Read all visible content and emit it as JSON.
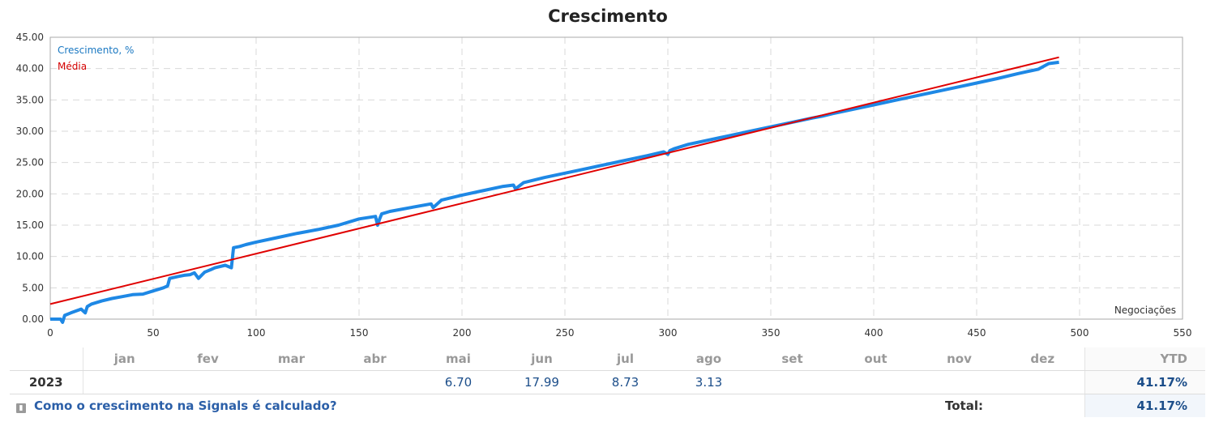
{
  "chart_data": {
    "type": "line",
    "title": "Crescimento",
    "xlabel": "Negociações",
    "ylabel": "",
    "xlim": [
      0,
      550
    ],
    "ylim": [
      0,
      45
    ],
    "x_ticks": [
      "0",
      "50",
      "100",
      "150",
      "200",
      "250",
      "300",
      "350",
      "400",
      "450",
      "500",
      "550"
    ],
    "y_ticks": [
      "0.00",
      "5.00",
      "10.00",
      "15.00",
      "20.00",
      "25.00",
      "30.00",
      "35.00",
      "40.00",
      "45.00"
    ],
    "grid": true,
    "legend_position": "top-left",
    "series": [
      {
        "name": "Crescimento, %",
        "color": "#1e88e5",
        "x": [
          0,
          2,
          5,
          6,
          7,
          10,
          15,
          17,
          18,
          20,
          25,
          30,
          35,
          40,
          45,
          50,
          55,
          57,
          58,
          62,
          65,
          68,
          70,
          72,
          75,
          78,
          80,
          85,
          88,
          89,
          92,
          95,
          100,
          110,
          120,
          130,
          140,
          150,
          158,
          159,
          160,
          161,
          165,
          175,
          185,
          186,
          190,
          200,
          210,
          220,
          225,
          226,
          230,
          240,
          250,
          260,
          270,
          280,
          290,
          298,
          300,
          301,
          303,
          310,
          320,
          330,
          340,
          350,
          360,
          370,
          375,
          380,
          390,
          400,
          410,
          420,
          430,
          440,
          450,
          460,
          470,
          480,
          485,
          490
        ],
        "y": [
          0.0,
          0.0,
          0.0,
          -0.5,
          0.6,
          1.0,
          1.6,
          1.0,
          2.0,
          2.4,
          2.9,
          3.3,
          3.6,
          3.9,
          4.0,
          4.5,
          5.0,
          5.3,
          6.5,
          6.8,
          7.0,
          7.1,
          7.4,
          6.5,
          7.5,
          7.9,
          8.2,
          8.6,
          8.2,
          11.4,
          11.6,
          11.9,
          12.3,
          13.0,
          13.7,
          14.3,
          15.0,
          16.0,
          16.4,
          15.0,
          16.0,
          16.8,
          17.2,
          17.8,
          18.4,
          17.8,
          19.0,
          19.8,
          20.5,
          21.2,
          21.4,
          20.8,
          21.8,
          22.6,
          23.3,
          24.0,
          24.7,
          25.4,
          26.1,
          26.7,
          26.3,
          26.9,
          27.2,
          27.9,
          28.6,
          29.3,
          30.0,
          30.7,
          31.4,
          32.1,
          32.4,
          32.8,
          33.5,
          34.2,
          34.9,
          35.6,
          36.3,
          37.0,
          37.7,
          38.4,
          39.2,
          39.9,
          40.8,
          41.0
        ]
      },
      {
        "name": "Média",
        "color": "#e00000",
        "x": [
          0,
          490
        ],
        "y": [
          2.4,
          41.8
        ]
      }
    ]
  },
  "table": {
    "months": [
      "jan",
      "fev",
      "mar",
      "abr",
      "mai",
      "jun",
      "jul",
      "ago",
      "set",
      "out",
      "nov",
      "dez"
    ],
    "ytd_header": "YTD",
    "rows": [
      {
        "year": "2023",
        "values": [
          "",
          "",
          "",
          "",
          "6.70",
          "17.99",
          "8.73",
          "3.13",
          "",
          "",
          "",
          ""
        ],
        "ytd": "41.17%"
      }
    ],
    "footer": {
      "link_text": "Como o crescimento na Signals é calculado?",
      "total_label": "Total:",
      "total_value": "41.17%"
    }
  }
}
